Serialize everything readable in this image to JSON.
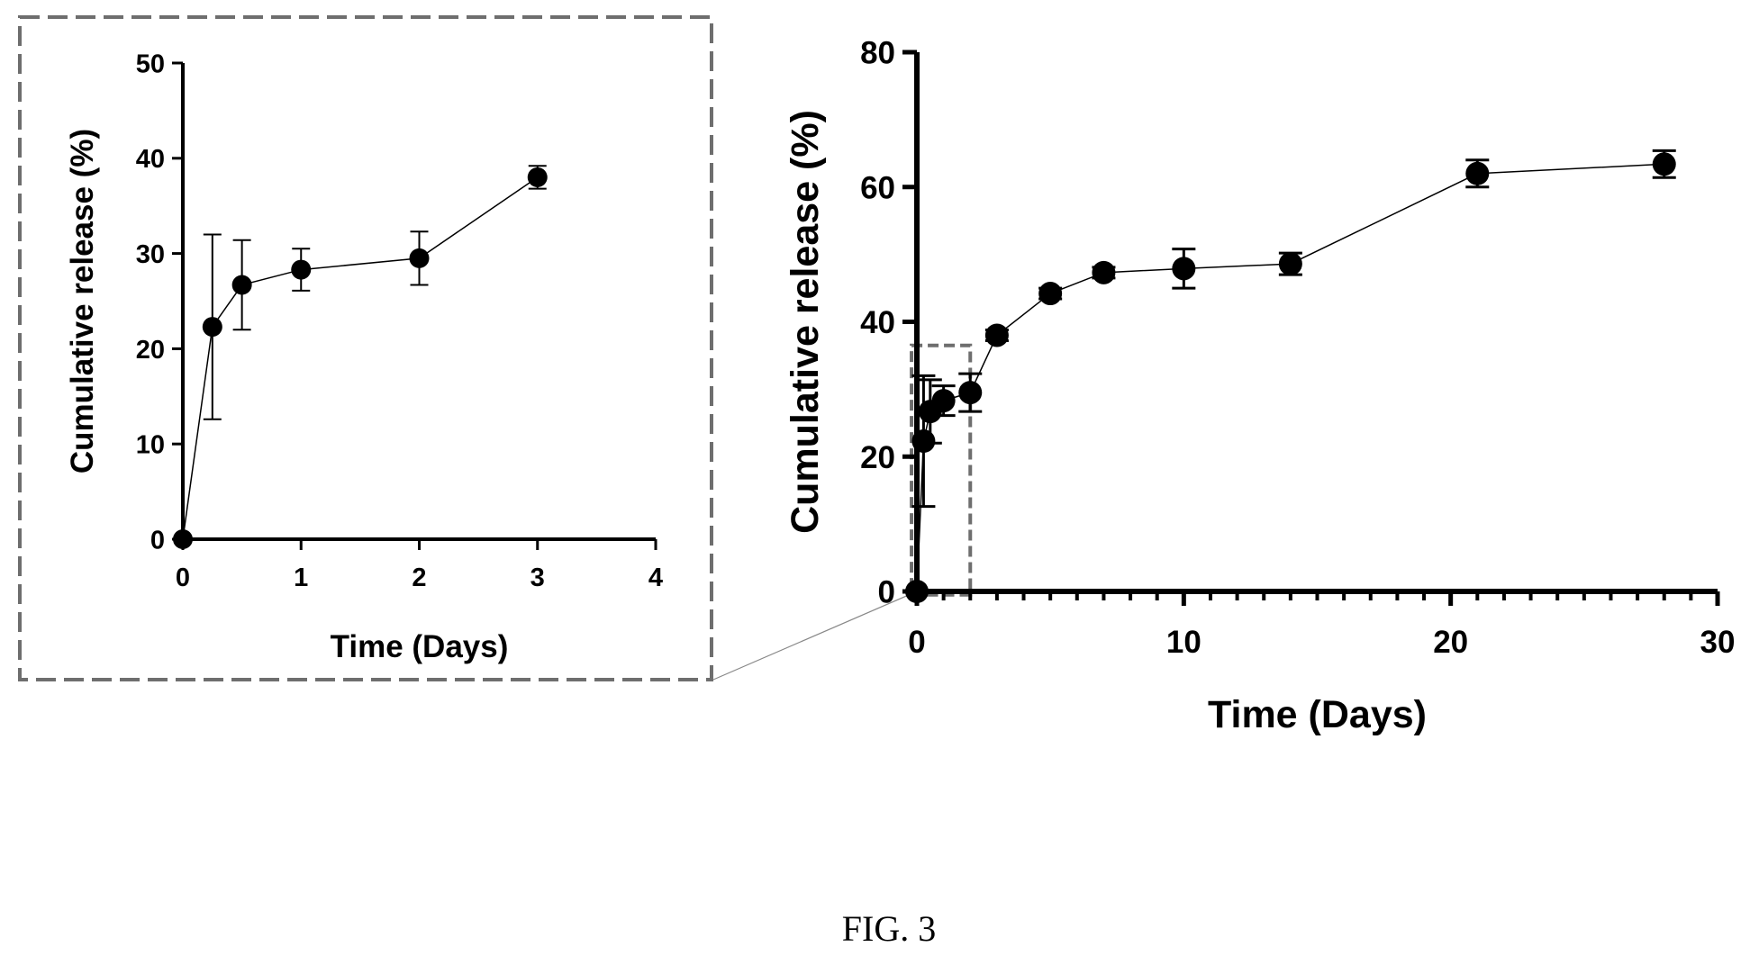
{
  "figure_label": "FIG. 3",
  "chart_data": [
    {
      "type": "line",
      "role": "inset",
      "xlabel": "Time (Days)",
      "ylabel": "Cumulative release (%)",
      "xlim": [
        0,
        4
      ],
      "ylim": [
        0,
        50
      ],
      "xticks": [
        "0",
        "1",
        "2",
        "3",
        "4"
      ],
      "yticks": [
        "0",
        "10",
        "20",
        "30",
        "40",
        "50"
      ],
      "grid": false,
      "series": [
        {
          "x": [
            0,
            0.25,
            0.5,
            1,
            2,
            3
          ],
          "y": [
            0,
            22.3,
            26.7,
            28.3,
            29.5,
            38.0
          ],
          "error": [
            0,
            9.7,
            4.7,
            2.2,
            2.8,
            1.2
          ]
        }
      ]
    },
    {
      "type": "line",
      "role": "main",
      "xlabel": "Time (Days)",
      "ylabel": "Cumulative release (%)",
      "xlim": [
        0,
        30
      ],
      "ylim": [
        0,
        80
      ],
      "xticks": [
        "0",
        "10",
        "20",
        "30"
      ],
      "yticks": [
        "0",
        "20",
        "40",
        "60",
        "80"
      ],
      "grid": false,
      "series": [
        {
          "x": [
            0,
            0.25,
            0.5,
            1,
            2,
            3,
            5,
            7,
            10,
            14,
            21,
            28
          ],
          "y": [
            0,
            22.3,
            26.7,
            28.3,
            29.5,
            38.0,
            44.2,
            47.3,
            47.9,
            48.6,
            62.0,
            63.4
          ],
          "error": [
            0,
            9.7,
            4.7,
            2.2,
            2.8,
            0.8,
            0.8,
            0.8,
            2.9,
            1.6,
            2.0,
            2.0
          ]
        }
      ]
    }
  ]
}
